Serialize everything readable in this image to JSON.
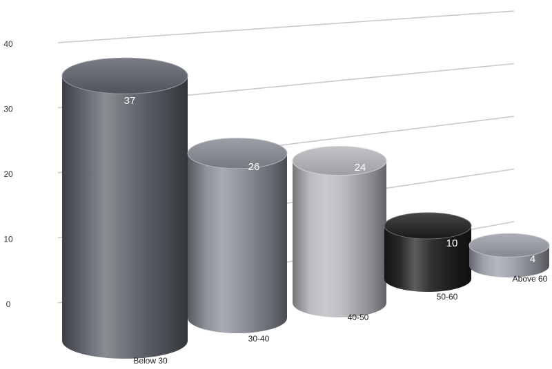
{
  "chart_data": {
    "type": "bar",
    "style": "3d-cylinder",
    "categories": [
      "Below 30",
      "30-40",
      "40-50",
      "50-60",
      "Above 60"
    ],
    "values": [
      37,
      26,
      24,
      10,
      4
    ],
    "data_labels": [
      "37",
      "26",
      "24",
      "10",
      "4"
    ],
    "ylim": [
      0,
      40
    ],
    "yticks": [
      "0",
      "10",
      "20",
      "30",
      "40"
    ],
    "grid": true,
    "legend": "none",
    "colors": [
      "#5c6068",
      "#868a92",
      "#b4b6bb",
      "#1e1e1e",
      "#9a9da6"
    ]
  }
}
